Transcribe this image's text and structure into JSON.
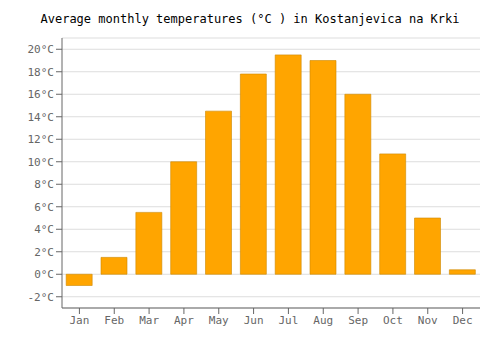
{
  "chart_data": {
    "type": "bar",
    "title": "Average monthly temperatures (°C ) in Kostanjevica na Krki",
    "categories": [
      "Jan",
      "Feb",
      "Mar",
      "Apr",
      "May",
      "Jun",
      "Jul",
      "Aug",
      "Sep",
      "Oct",
      "Nov",
      "Dec"
    ],
    "values": [
      -1.0,
      1.5,
      5.5,
      10.0,
      14.5,
      17.8,
      19.5,
      19.0,
      16.0,
      10.7,
      5.0,
      0.4
    ],
    "color": "#FFA500",
    "ylim": [
      -3,
      21
    ],
    "yticks": [
      {
        "value": -2,
        "label": "-2°C"
      },
      {
        "value": 0,
        "label": "0°C"
      },
      {
        "value": 2,
        "label": "2°C"
      },
      {
        "value": 4,
        "label": "4°C"
      },
      {
        "value": 6,
        "label": "6°C"
      },
      {
        "value": 8,
        "label": "8°C"
      },
      {
        "value": 10,
        "label": "10°C"
      },
      {
        "value": 12,
        "label": "12°C"
      },
      {
        "value": 14,
        "label": "14°C"
      },
      {
        "value": 16,
        "label": "16°C"
      },
      {
        "value": 18,
        "label": "18°C"
      },
      {
        "value": 20,
        "label": "20°C"
      }
    ],
    "grid": true
  }
}
